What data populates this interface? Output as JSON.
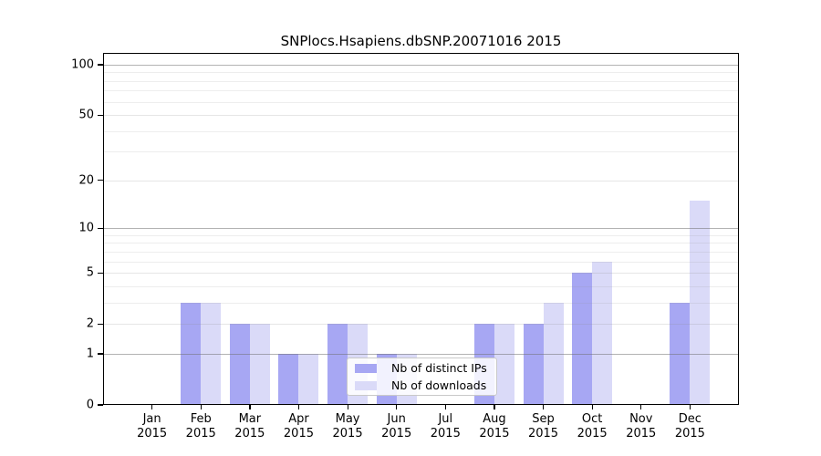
{
  "title": "SNPlocs.Hsapiens.dbSNP.20071016 2015",
  "colors": {
    "ips_bar": "#a7a7f3",
    "downloads_bar": "#dadaf8",
    "axis": "#000000",
    "grid_decade": "#b2b2b2",
    "grid_minor": "#ececec",
    "background": "#ffffff"
  },
  "chart_data": {
    "type": "bar",
    "title": "SNPlocs.Hsapiens.dbSNP.20071016 2015",
    "categories": [
      {
        "month": "Jan",
        "year": "2015"
      },
      {
        "month": "Feb",
        "year": "2015"
      },
      {
        "month": "Mar",
        "year": "2015"
      },
      {
        "month": "Apr",
        "year": "2015"
      },
      {
        "month": "May",
        "year": "2015"
      },
      {
        "month": "Jun",
        "year": "2015"
      },
      {
        "month": "Jul",
        "year": "2015"
      },
      {
        "month": "Aug",
        "year": "2015"
      },
      {
        "month": "Sep",
        "year": "2015"
      },
      {
        "month": "Oct",
        "year": "2015"
      },
      {
        "month": "Nov",
        "year": "2015"
      },
      {
        "month": "Dec",
        "year": "2015"
      }
    ],
    "series": [
      {
        "name": "Nb of distinct IPs",
        "color": "#a7a7f3",
        "values": [
          0,
          3,
          2,
          1,
          2,
          1,
          0,
          2,
          2,
          5,
          0,
          3
        ]
      },
      {
        "name": "Nb of downloads",
        "color": "#dadaf8",
        "values": [
          0,
          3,
          2,
          1,
          2,
          1,
          0,
          2,
          3,
          6,
          0,
          15
        ]
      }
    ],
    "y_axis": {
      "scale": "log1p",
      "tick_values": [
        0,
        1,
        2,
        5,
        10,
        20,
        50,
        100
      ],
      "tick_labels": [
        "0",
        "1",
        "2",
        "5",
        "10",
        "20",
        "50",
        "100"
      ],
      "decade_gridlines": [
        1,
        10,
        100
      ],
      "major_gridlines": [
        2,
        5,
        20,
        50
      ],
      "minor_gridlines": [
        3,
        4,
        6,
        7,
        8,
        9,
        30,
        40,
        60,
        70,
        80,
        90
      ],
      "ylim": [
        0,
        118
      ]
    },
    "legend": {
      "position": "lower center",
      "entries": [
        "Nb of distinct IPs",
        "Nb of downloads"
      ]
    },
    "grid": true
  }
}
